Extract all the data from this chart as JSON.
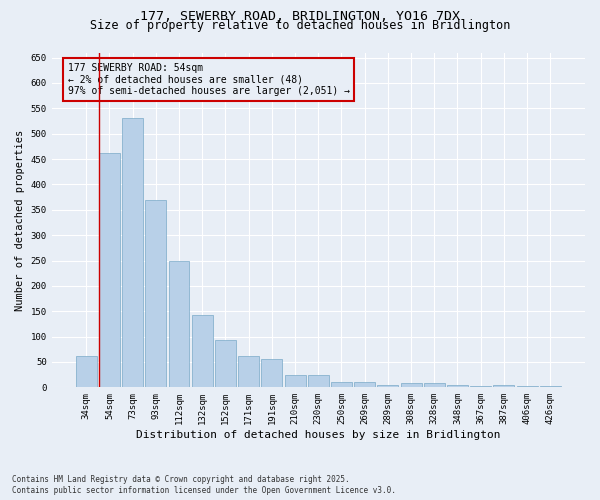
{
  "title_line1": "177, SEWERBY ROAD, BRIDLINGTON, YO16 7DX",
  "title_line2": "Size of property relative to detached houses in Bridlington",
  "xlabel": "Distribution of detached houses by size in Bridlington",
  "ylabel": "Number of detached properties",
  "categories": [
    "34sqm",
    "54sqm",
    "73sqm",
    "93sqm",
    "112sqm",
    "132sqm",
    "152sqm",
    "171sqm",
    "191sqm",
    "210sqm",
    "230sqm",
    "250sqm",
    "269sqm",
    "289sqm",
    "308sqm",
    "328sqm",
    "348sqm",
    "367sqm",
    "387sqm",
    "406sqm",
    "426sqm"
  ],
  "values": [
    62,
    462,
    530,
    370,
    250,
    142,
    94,
    62,
    55,
    25,
    25,
    10,
    10,
    5,
    8,
    8,
    5,
    3,
    5,
    3,
    3
  ],
  "bar_color": "#b8d0e8",
  "bar_edge_color": "#7aaac8",
  "highlight_bar_index": 1,
  "highlight_line_color": "#cc0000",
  "ylim": [
    0,
    660
  ],
  "yticks": [
    0,
    50,
    100,
    150,
    200,
    250,
    300,
    350,
    400,
    450,
    500,
    550,
    600,
    650
  ],
  "annotation_box_text": "177 SEWERBY ROAD: 54sqm\n← 2% of detached houses are smaller (48)\n97% of semi-detached houses are larger (2,051) →",
  "footer_line1": "Contains HM Land Registry data © Crown copyright and database right 2025.",
  "footer_line2": "Contains public sector information licensed under the Open Government Licence v3.0.",
  "bg_color": "#e8eef6",
  "grid_color": "#ffffff",
  "title_fontsize": 9.5,
  "subtitle_fontsize": 8.5,
  "tick_fontsize": 6.5,
  "ylabel_fontsize": 7.5,
  "xlabel_fontsize": 8,
  "annot_fontsize": 7,
  "footer_fontsize": 5.5
}
